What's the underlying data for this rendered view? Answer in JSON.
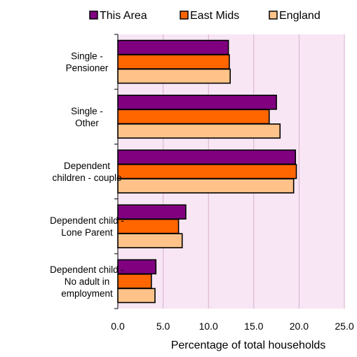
{
  "chart_data": {
    "type": "bar",
    "orientation": "horizontal",
    "title": "",
    "xlabel": "Percentage of total households",
    "ylabel": "",
    "xlim": [
      0,
      25
    ],
    "xticks": [
      "0.0",
      "5.0",
      "10.0",
      "15.0",
      "20.0",
      "25.0"
    ],
    "grid": true,
    "legend_position": "top",
    "categories": [
      [
        "Single -",
        "Pensioner"
      ],
      [
        "Single -",
        "Other"
      ],
      [
        "Dependent",
        "children - couple"
      ],
      [
        "Dependent child -",
        "Lone Parent"
      ],
      [
        "Dependent child -",
        "No adult in",
        "employment"
      ]
    ],
    "series": [
      {
        "name": "This Area",
        "color": "#800080",
        "values": [
          12.2,
          17.5,
          19.6,
          7.5,
          4.2
        ]
      },
      {
        "name": "East Mids",
        "color": "#FF6600",
        "values": [
          12.3,
          16.7,
          19.7,
          6.7,
          3.7
        ]
      },
      {
        "name": "England",
        "color": "#FFC38A",
        "values": [
          12.4,
          17.9,
          19.4,
          7.1,
          4.1
        ]
      }
    ],
    "plot_background": "#F8E6F4",
    "grid_color": "#D8B0D0"
  }
}
